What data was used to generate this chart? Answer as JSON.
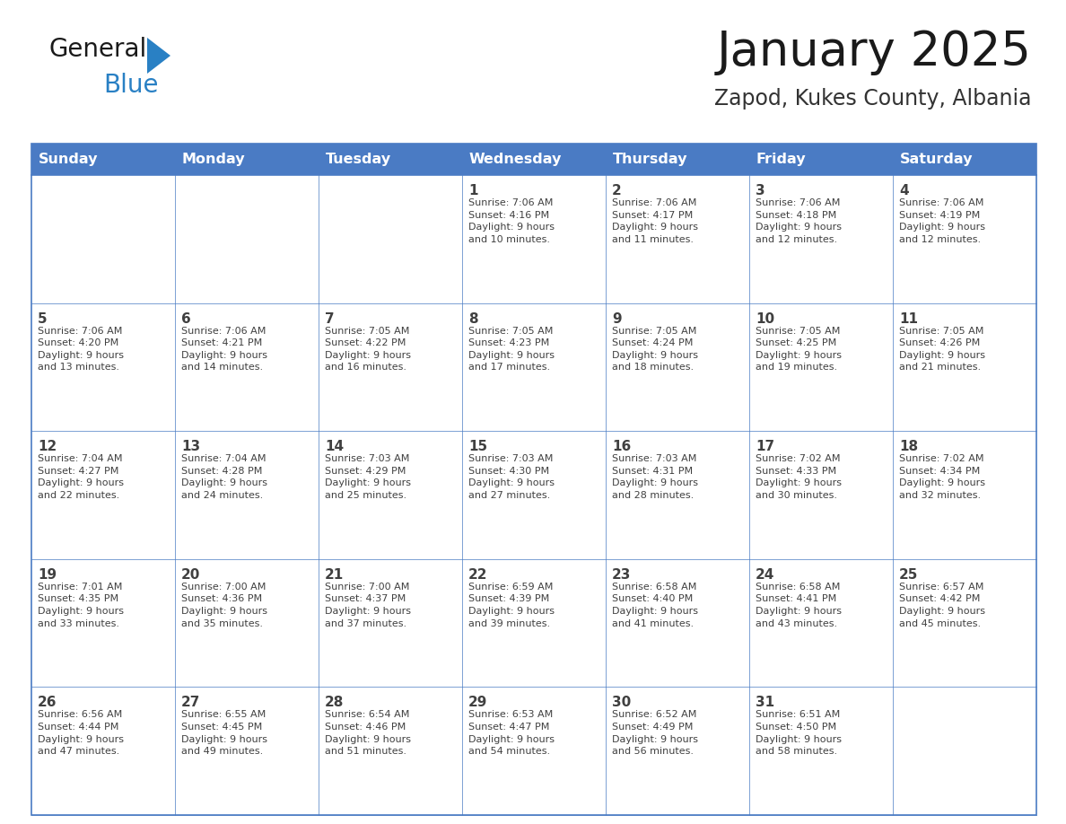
{
  "title": "January 2025",
  "subtitle": "Zapod, Kukes County, Albania",
  "days_of_week": [
    "Sunday",
    "Monday",
    "Tuesday",
    "Wednesday",
    "Thursday",
    "Friday",
    "Saturday"
  ],
  "header_bg": "#4A7BC4",
  "header_text": "#FFFFFF",
  "border_color": "#4A7BC4",
  "row_line_color": "#4A7BC4",
  "text_color": "#404040",
  "title_color": "#1a1a1a",
  "subtitle_color": "#333333",
  "logo_general_color": "#1a1a1a",
  "logo_blue_color": "#2980C4",
  "logo_triangle_color": "#2980C4",
  "calendar_data": [
    [
      {
        "day": "",
        "info": ""
      },
      {
        "day": "",
        "info": ""
      },
      {
        "day": "",
        "info": ""
      },
      {
        "day": "1",
        "info": "Sunrise: 7:06 AM\nSunset: 4:16 PM\nDaylight: 9 hours\nand 10 minutes."
      },
      {
        "day": "2",
        "info": "Sunrise: 7:06 AM\nSunset: 4:17 PM\nDaylight: 9 hours\nand 11 minutes."
      },
      {
        "day": "3",
        "info": "Sunrise: 7:06 AM\nSunset: 4:18 PM\nDaylight: 9 hours\nand 12 minutes."
      },
      {
        "day": "4",
        "info": "Sunrise: 7:06 AM\nSunset: 4:19 PM\nDaylight: 9 hours\nand 12 minutes."
      }
    ],
    [
      {
        "day": "5",
        "info": "Sunrise: 7:06 AM\nSunset: 4:20 PM\nDaylight: 9 hours\nand 13 minutes."
      },
      {
        "day": "6",
        "info": "Sunrise: 7:06 AM\nSunset: 4:21 PM\nDaylight: 9 hours\nand 14 minutes."
      },
      {
        "day": "7",
        "info": "Sunrise: 7:05 AM\nSunset: 4:22 PM\nDaylight: 9 hours\nand 16 minutes."
      },
      {
        "day": "8",
        "info": "Sunrise: 7:05 AM\nSunset: 4:23 PM\nDaylight: 9 hours\nand 17 minutes."
      },
      {
        "day": "9",
        "info": "Sunrise: 7:05 AM\nSunset: 4:24 PM\nDaylight: 9 hours\nand 18 minutes."
      },
      {
        "day": "10",
        "info": "Sunrise: 7:05 AM\nSunset: 4:25 PM\nDaylight: 9 hours\nand 19 minutes."
      },
      {
        "day": "11",
        "info": "Sunrise: 7:05 AM\nSunset: 4:26 PM\nDaylight: 9 hours\nand 21 minutes."
      }
    ],
    [
      {
        "day": "12",
        "info": "Sunrise: 7:04 AM\nSunset: 4:27 PM\nDaylight: 9 hours\nand 22 minutes."
      },
      {
        "day": "13",
        "info": "Sunrise: 7:04 AM\nSunset: 4:28 PM\nDaylight: 9 hours\nand 24 minutes."
      },
      {
        "day": "14",
        "info": "Sunrise: 7:03 AM\nSunset: 4:29 PM\nDaylight: 9 hours\nand 25 minutes."
      },
      {
        "day": "15",
        "info": "Sunrise: 7:03 AM\nSunset: 4:30 PM\nDaylight: 9 hours\nand 27 minutes."
      },
      {
        "day": "16",
        "info": "Sunrise: 7:03 AM\nSunset: 4:31 PM\nDaylight: 9 hours\nand 28 minutes."
      },
      {
        "day": "17",
        "info": "Sunrise: 7:02 AM\nSunset: 4:33 PM\nDaylight: 9 hours\nand 30 minutes."
      },
      {
        "day": "18",
        "info": "Sunrise: 7:02 AM\nSunset: 4:34 PM\nDaylight: 9 hours\nand 32 minutes."
      }
    ],
    [
      {
        "day": "19",
        "info": "Sunrise: 7:01 AM\nSunset: 4:35 PM\nDaylight: 9 hours\nand 33 minutes."
      },
      {
        "day": "20",
        "info": "Sunrise: 7:00 AM\nSunset: 4:36 PM\nDaylight: 9 hours\nand 35 minutes."
      },
      {
        "day": "21",
        "info": "Sunrise: 7:00 AM\nSunset: 4:37 PM\nDaylight: 9 hours\nand 37 minutes."
      },
      {
        "day": "22",
        "info": "Sunrise: 6:59 AM\nSunset: 4:39 PM\nDaylight: 9 hours\nand 39 minutes."
      },
      {
        "day": "23",
        "info": "Sunrise: 6:58 AM\nSunset: 4:40 PM\nDaylight: 9 hours\nand 41 minutes."
      },
      {
        "day": "24",
        "info": "Sunrise: 6:58 AM\nSunset: 4:41 PM\nDaylight: 9 hours\nand 43 minutes."
      },
      {
        "day": "25",
        "info": "Sunrise: 6:57 AM\nSunset: 4:42 PM\nDaylight: 9 hours\nand 45 minutes."
      }
    ],
    [
      {
        "day": "26",
        "info": "Sunrise: 6:56 AM\nSunset: 4:44 PM\nDaylight: 9 hours\nand 47 minutes."
      },
      {
        "day": "27",
        "info": "Sunrise: 6:55 AM\nSunset: 4:45 PM\nDaylight: 9 hours\nand 49 minutes."
      },
      {
        "day": "28",
        "info": "Sunrise: 6:54 AM\nSunset: 4:46 PM\nDaylight: 9 hours\nand 51 minutes."
      },
      {
        "day": "29",
        "info": "Sunrise: 6:53 AM\nSunset: 4:47 PM\nDaylight: 9 hours\nand 54 minutes."
      },
      {
        "day": "30",
        "info": "Sunrise: 6:52 AM\nSunset: 4:49 PM\nDaylight: 9 hours\nand 56 minutes."
      },
      {
        "day": "31",
        "info": "Sunrise: 6:51 AM\nSunset: 4:50 PM\nDaylight: 9 hours\nand 58 minutes."
      },
      {
        "day": "",
        "info": ""
      }
    ]
  ]
}
